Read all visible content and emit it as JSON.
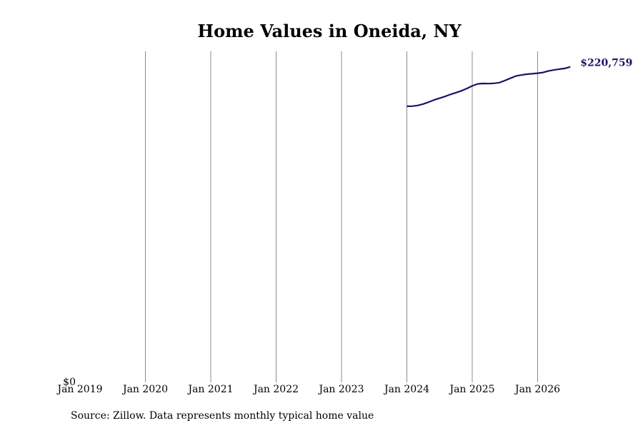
{
  "chart_data": {
    "type": "line",
    "title": "Home Values in Oneida, NY",
    "xlabel": "",
    "ylabel": "",
    "x_tick_labels": [
      "Jan 2019",
      "Jan 2020",
      "Jan 2021",
      "Jan 2022",
      "Jan 2023",
      "Jan 2024",
      "Jan 2025",
      "Jan 2026"
    ],
    "y_tick_labels": [
      "$0"
    ],
    "xlim": [
      "2019-01",
      "2026-07"
    ],
    "ylim": [
      0,
      235000
    ],
    "grid": "vertical",
    "line_color": "#1a1464",
    "series": [
      {
        "x": [
          "2024-01",
          "2024-02",
          "2024-03",
          "2024-04",
          "2024-05",
          "2024-06",
          "2024-07",
          "2024-08",
          "2024-09",
          "2024-10",
          "2024-11",
          "2024-12",
          "2025-01",
          "2025-02",
          "2025-03",
          "2025-04",
          "2025-05",
          "2025-06",
          "2025-07",
          "2025-08",
          "2025-09",
          "2025-10",
          "2025-11",
          "2025-12",
          "2026-01",
          "2026-02",
          "2026-03",
          "2026-04",
          "2026-05",
          "2026-06",
          "2026-07"
        ],
        "values": [
          196000,
          196100,
          196600,
          197600,
          199000,
          200500,
          201700,
          203000,
          204400,
          205700,
          207000,
          208600,
          210500,
          211900,
          212200,
          212100,
          212300,
          212800,
          214300,
          215900,
          217500,
          218200,
          218800,
          219100,
          219500,
          220000,
          221100,
          221800,
          222400,
          222900,
          224000
        ]
      }
    ],
    "end_label": "$220,759"
  },
  "footer": {
    "source": "Source: Zillow. Data represents monthly typical home value"
  }
}
